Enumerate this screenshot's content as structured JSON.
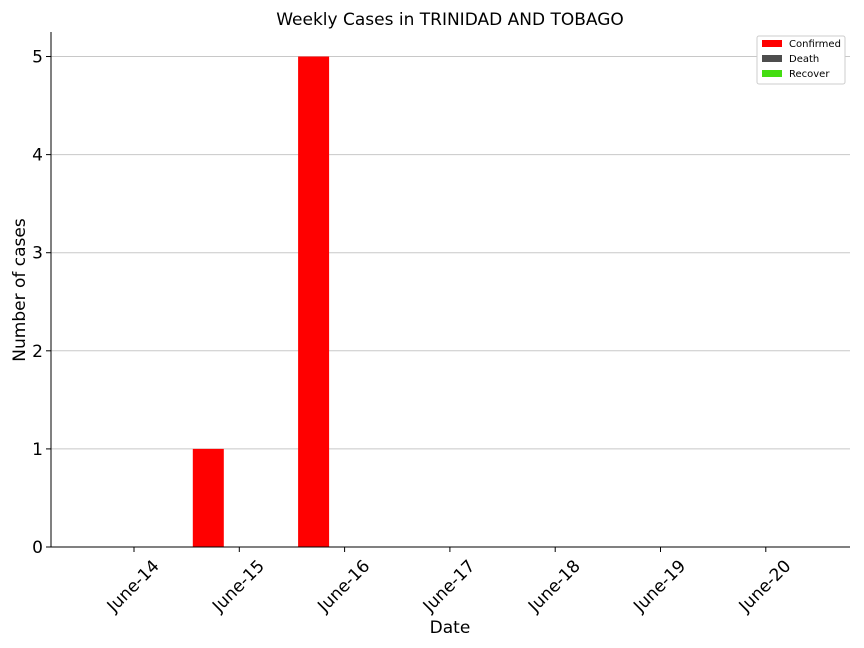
{
  "chart_data": {
    "type": "bar",
    "title": "Weekly Cases in TRINIDAD AND TOBAGO",
    "xlabel": "Date",
    "ylabel": "Number of cases",
    "categories": [
      "June-14",
      "June-15",
      "June-16",
      "June-17",
      "June-18",
      "June-19",
      "June-20"
    ],
    "series": [
      {
        "name": "Confirmed",
        "color": "#ff0000",
        "values": [
          0,
          1,
          5,
          0,
          0,
          0,
          0
        ]
      },
      {
        "name": "Death",
        "color": "#4d4d4d",
        "values": [
          0,
          0,
          0,
          0,
          0,
          0,
          0
        ]
      },
      {
        "name": "Recover",
        "color": "#44dd11",
        "values": [
          0,
          0,
          0,
          0,
          0,
          0,
          0
        ]
      }
    ],
    "ylim": [
      0,
      5.25
    ],
    "yticks": [
      0,
      1,
      2,
      3,
      4,
      5
    ],
    "grid": "y",
    "legend_position": "top-right"
  }
}
